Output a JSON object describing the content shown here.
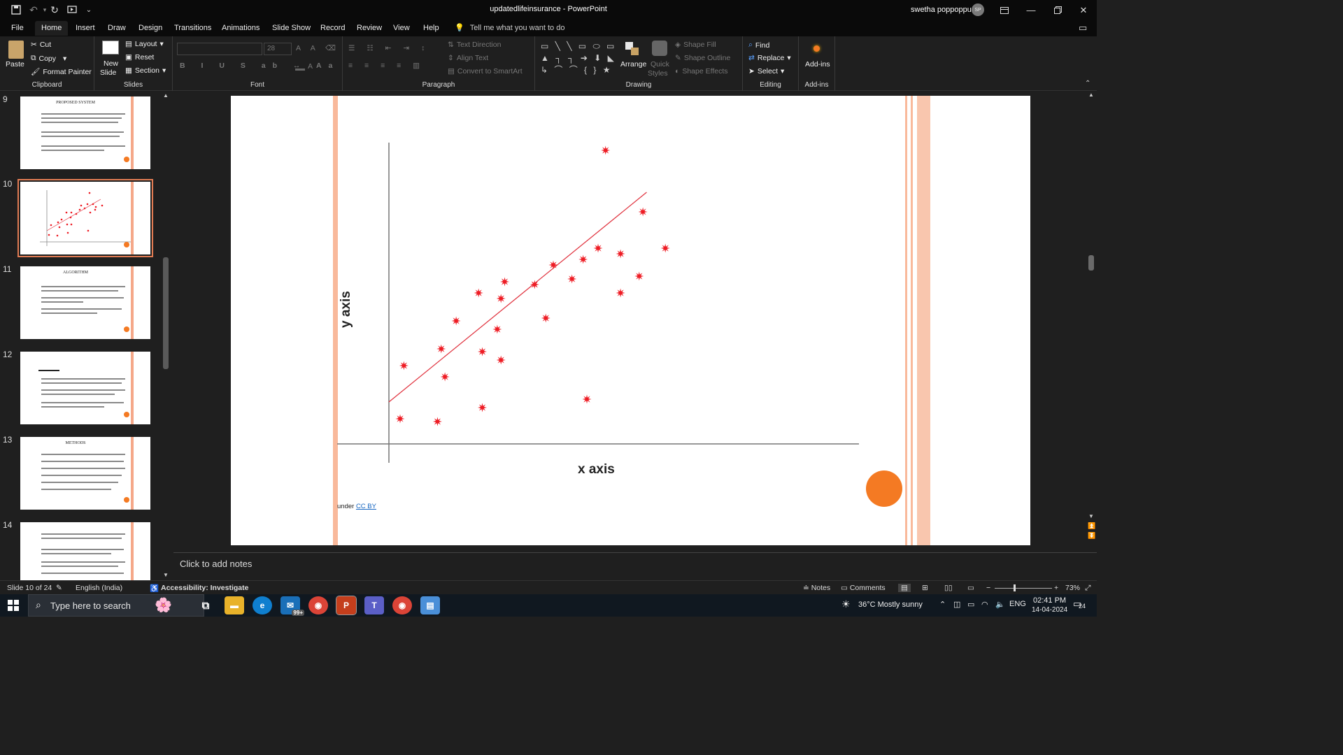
{
  "window": {
    "title": "updatedlifeinsurance  -  PowerPoint",
    "user_name": "swetha poppoppu",
    "user_initials": "SP"
  },
  "menu_tabs": [
    "File",
    "Home",
    "Insert",
    "Draw",
    "Design",
    "Transitions",
    "Animations",
    "Slide Show",
    "Record",
    "Review",
    "View",
    "Help"
  ],
  "tell_me": "Tell me what you want to do",
  "ribbon": {
    "clipboard": {
      "paste": "Paste",
      "cut": "Cut",
      "copy": "Copy",
      "format_painter": "Format Painter",
      "label": "Clipboard"
    },
    "slides": {
      "new_slide_1": "New",
      "new_slide_2": "Slide",
      "layout": "Layout",
      "reset": "Reset",
      "section": "Section",
      "label": "Slides"
    },
    "font": {
      "size": "28",
      "label": "Font"
    },
    "paragraph": {
      "text_direction": "Text Direction",
      "align_text": "Align Text",
      "convert_smartart": "Convert to SmartArt",
      "label": "Paragraph"
    },
    "drawing": {
      "arrange": "Arrange",
      "quick_styles_1": "Quick",
      "quick_styles_2": "Styles",
      "shape_fill": "Shape Fill",
      "shape_outline": "Shape Outline",
      "shape_effects": "Shape Effects",
      "label": "Drawing"
    },
    "editing": {
      "find": "Find",
      "replace": "Replace",
      "select": "Select",
      "label": "Editing"
    },
    "addins": {
      "addins": "Add-ins",
      "label": "Add-ins"
    }
  },
  "thumbnails": [
    {
      "num": "9",
      "title": "PROPOSED SYSTEM"
    },
    {
      "num": "10",
      "title": ""
    },
    {
      "num": "11",
      "title": "ALGORITHM"
    },
    {
      "num": "12",
      "title": ""
    },
    {
      "num": "13",
      "title": "METHODS"
    },
    {
      "num": "14",
      "title": ""
    }
  ],
  "slide": {
    "y_axis_label": "y axis",
    "x_axis_label": "x axis",
    "credit_prefix": "under ",
    "credit_link": "CC BY"
  },
  "chart_data": {
    "type": "scatter",
    "xlabel": "x axis",
    "ylabel": "y axis",
    "xlim": [
      0,
      100
    ],
    "ylim": [
      0,
      100
    ],
    "grid": false,
    "series": [
      {
        "points": [
          [
            3,
            9
          ],
          [
            4,
            28
          ],
          [
            13,
            8
          ],
          [
            14,
            34
          ],
          [
            15,
            24
          ],
          [
            18,
            44
          ],
          [
            24,
            54
          ],
          [
            25,
            33
          ],
          [
            25,
            13
          ],
          [
            29,
            41
          ],
          [
            30,
            52
          ],
          [
            30,
            30
          ],
          [
            31,
            58
          ],
          [
            39,
            57
          ],
          [
            42,
            45
          ],
          [
            44,
            64
          ],
          [
            49,
            59
          ],
          [
            52,
            66
          ],
          [
            53,
            16
          ],
          [
            56,
            70
          ],
          [
            58,
            105
          ],
          [
            62,
            54
          ],
          [
            62,
            68
          ],
          [
            67,
            60
          ],
          [
            68,
            83
          ],
          [
            74,
            70
          ]
        ],
        "color": "#ee1c24"
      }
    ],
    "trendline": {
      "from": [
        0,
        15
      ],
      "to": [
        69,
        90
      ],
      "color": "#e0313d"
    }
  },
  "notes_placeholder": "Click to add notes",
  "status": {
    "slide_of": "Slide 10 of 24",
    "language": "English (India)",
    "accessibility": "Accessibility: Investigate",
    "notes": "Notes",
    "comments": "Comments",
    "zoom": "73%"
  },
  "taskbar": {
    "search_placeholder": "Type here to search",
    "badge": "99+",
    "weather": "36°C  Mostly sunny",
    "lang": "ENG",
    "time": "02:41 PM",
    "date": "14-04-2024",
    "notif_count": "24"
  }
}
